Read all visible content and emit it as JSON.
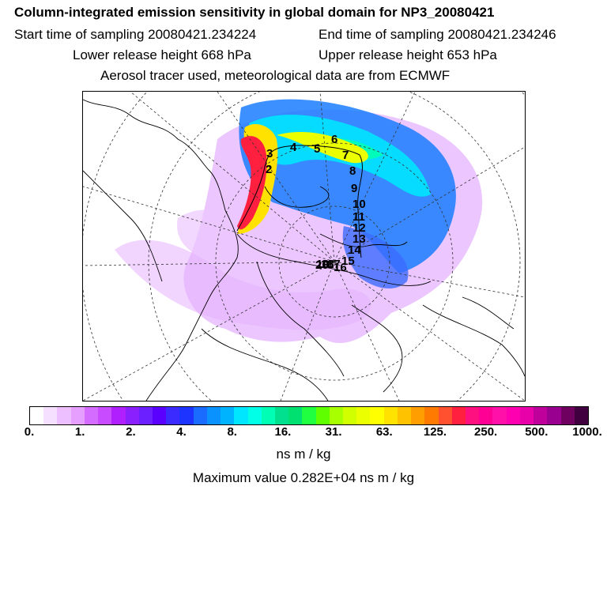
{
  "header": {
    "title": "Column-integrated emission sensitivity in global domain for NP3_20080421",
    "start": "Start time of sampling 20080421.234224",
    "end": "End time of sampling 20080421.234246",
    "lower": "Lower release height  668 hPa",
    "upper": "Upper release height  653 hPa",
    "tracer": "Aerosol tracer used, meteorological data are from ECMWF"
  },
  "map": {
    "projection": "north-polar-stereographic",
    "track_labels": [
      "3",
      "4",
      "5",
      "6",
      "7",
      "8",
      "9",
      "10",
      "11",
      "12",
      "13",
      "14",
      "15",
      "16",
      "17",
      "18",
      "19",
      "20",
      "2"
    ]
  },
  "colorbar": {
    "colors": [
      "#ffffff",
      "#f6e0ff",
      "#eebfff",
      "#e69fff",
      "#d36cff",
      "#c84bff",
      "#b020ff",
      "#8b20ff",
      "#6a20ff",
      "#5a00ff",
      "#3b2bff",
      "#1d33ff",
      "#1a6bff",
      "#0a93ff",
      "#00b3ff",
      "#00e6ff",
      "#00ffe6",
      "#00ffb4",
      "#00e08e",
      "#00e070",
      "#20ff40",
      "#60ff00",
      "#a8ff00",
      "#d2ff00",
      "#ecff00",
      "#ffff00",
      "#ffe200",
      "#ffc200",
      "#ff9e00",
      "#ff7a00",
      "#ff5030",
      "#ff2040",
      "#ff1080",
      "#ff0094",
      "#ff10a8",
      "#ff00b0",
      "#e800a8",
      "#c0009a",
      "#9a0090",
      "#700060",
      "#400040"
    ],
    "tick_labels": [
      "0.",
      "1.",
      "2.",
      "4.",
      "8.",
      "16.",
      "31.",
      "63.",
      "125.",
      "250.",
      "500.",
      "1000."
    ],
    "unit": "ns m / kg",
    "max_value_text": "Maximum value  0.282E+04 ns m / kg"
  }
}
